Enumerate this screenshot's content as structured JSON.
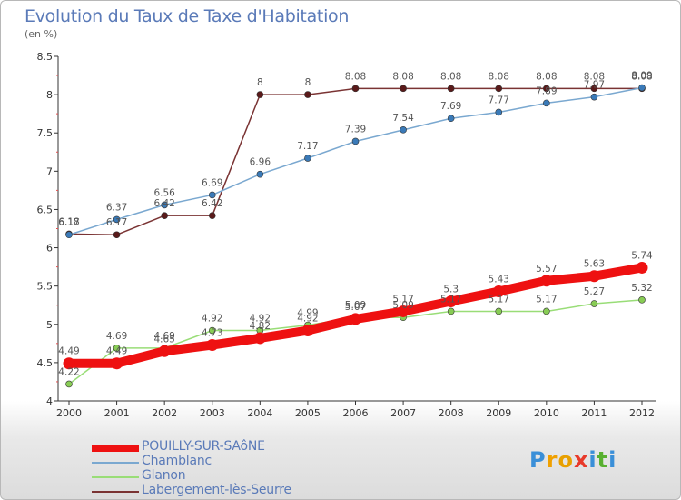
{
  "title": "Evolution du Taux de Taxe d'Habitation",
  "subtitle": "(en %)",
  "logo": {
    "letters": [
      "P",
      "r",
      "o",
      "x",
      "i",
      "t",
      "i"
    ],
    "colors": [
      "#3a8fd8",
      "#f0a000",
      "#e8a000",
      "#e83a2a",
      "#3a8fd8",
      "#58b030",
      "#3a8fd8"
    ]
  },
  "chart_data": {
    "type": "line",
    "x": [
      "2000",
      "2001",
      "2002",
      "2003",
      "2004",
      "2005",
      "2006",
      "2007",
      "2008",
      "2009",
      "2010",
      "2011",
      "2012"
    ],
    "ylim": [
      4,
      8.5
    ],
    "yticks": [
      "4",
      "4.5",
      "5",
      "5.5",
      "6",
      "6.5",
      "7",
      "7.5",
      "8",
      "8.5"
    ],
    "grid": false,
    "legend_position": "bottom",
    "series": [
      {
        "name": "POUILLY-SUR-SAôNE",
        "color": "#ee1111",
        "values": [
          4.49,
          4.49,
          4.65,
          4.73,
          4.82,
          4.92,
          5.07,
          5.17,
          5.3,
          5.43,
          5.57,
          5.63,
          5.74
        ],
        "labels": [
          "4.49",
          "4.49",
          "4.65",
          "4.73",
          "4.82",
          "4.92",
          "5.07",
          "5.17",
          "5.3",
          "5.43",
          "5.57",
          "5.63",
          "5.74"
        ]
      },
      {
        "name": "Chamblanc",
        "color": "#7aa8d0",
        "values": [
          6.17,
          6.37,
          6.56,
          6.69,
          6.96,
          7.17,
          7.39,
          7.54,
          7.69,
          7.77,
          7.89,
          7.97,
          8.09
        ],
        "labels": [
          "6.17",
          "6.37",
          "6.56",
          "6.69",
          "6.96",
          "7.17",
          "7.39",
          "7.54",
          "7.69",
          "7.77",
          "7.89",
          "7.97",
          "8.09"
        ]
      },
      {
        "name": "Glanon",
        "color": "#99dd77",
        "values": [
          4.22,
          4.69,
          4.69,
          4.92,
          4.92,
          4.99,
          5.09,
          5.09,
          5.17,
          5.17,
          5.17,
          5.27,
          5.32
        ],
        "labels": [
          "4.22",
          "4.69",
          "4.69",
          "4.92",
          "4.92",
          "4.99",
          "5.09",
          "5.09",
          "5.17",
          "5.17",
          "5.17",
          "5.27",
          "5.32"
        ]
      },
      {
        "name": "Labergement-lès-Seurre",
        "color": "#7a3333",
        "values": [
          6.18,
          6.17,
          6.42,
          6.42,
          8,
          8,
          8.08,
          8.08,
          8.08,
          8.08,
          8.08,
          8.08,
          8.08
        ],
        "labels": [
          "6.18",
          "6.17",
          "6.42",
          "6.42",
          "8",
          "8",
          "8.08",
          "8.08",
          "8.08",
          "8.08",
          "8.08",
          "8.08",
          "8.08"
        ]
      }
    ]
  }
}
